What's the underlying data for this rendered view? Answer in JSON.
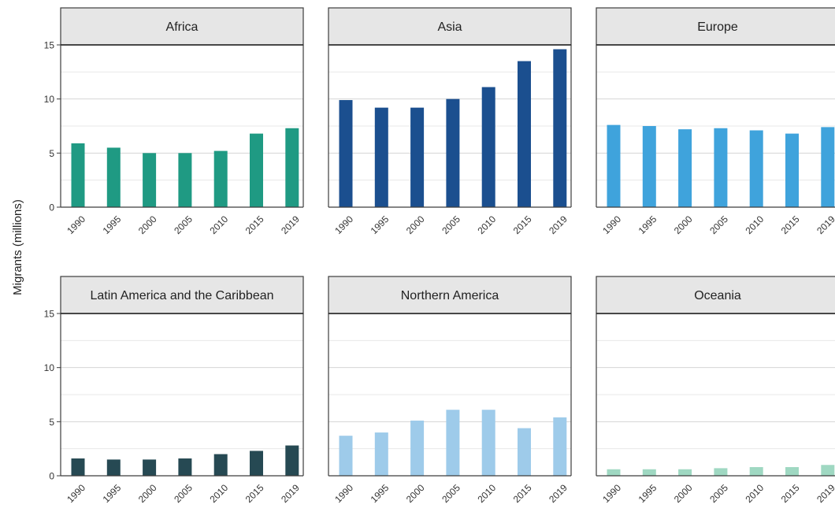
{
  "chart_data": {
    "type": "bar",
    "layout": "small-multiples",
    "ylabel": "Migrants (millions)",
    "ylim": [
      0,
      15
    ],
    "yticks": [
      0,
      5,
      10,
      15
    ],
    "grid": true,
    "categories": [
      "1990",
      "1995",
      "2000",
      "2005",
      "2010",
      "2015",
      "2019"
    ],
    "panels": [
      {
        "name": "Africa",
        "color": "#1f9a83",
        "values": [
          5.9,
          5.5,
          5.0,
          5.0,
          5.2,
          6.8,
          7.3
        ]
      },
      {
        "name": "Asia",
        "color": "#1b4f8f",
        "values": [
          9.9,
          9.2,
          9.2,
          10.0,
          11.1,
          13.5,
          14.6
        ]
      },
      {
        "name": "Europe",
        "color": "#3fa3dc",
        "values": [
          7.6,
          7.5,
          7.2,
          7.3,
          7.1,
          6.8,
          7.4
        ]
      },
      {
        "name": "Latin America and the Caribbean",
        "color": "#264953",
        "values": [
          1.6,
          1.5,
          1.5,
          1.6,
          2.0,
          2.3,
          2.8
        ]
      },
      {
        "name": "Northern America",
        "color": "#9ecbea",
        "values": [
          3.7,
          4.0,
          5.1,
          6.1,
          6.1,
          4.4,
          5.4
        ]
      },
      {
        "name": "Oceania",
        "color": "#9fd8c2",
        "values": [
          0.6,
          0.6,
          0.6,
          0.7,
          0.8,
          0.8,
          1.0
        ]
      }
    ]
  }
}
